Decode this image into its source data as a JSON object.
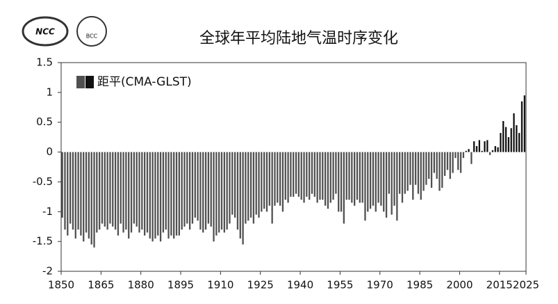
{
  "logos": [
    "NCC",
    "BCC"
  ],
  "chart_data": {
    "type": "bar",
    "title": "全球年平均陆地气温时序变化",
    "series": [
      {
        "name": "距平(CMA-GLST)",
        "color": "#505050",
        "positive_color": "#111111",
        "values": [
          -1.1,
          -1.3,
          -1.4,
          -1.2,
          -1.3,
          -1.45,
          -1.3,
          -1.4,
          -1.5,
          -1.35,
          -1.45,
          -1.55,
          -1.6,
          -1.35,
          -1.3,
          -1.2,
          -1.25,
          -1.3,
          -1.2,
          -1.25,
          -1.3,
          -1.4,
          -1.2,
          -1.35,
          -1.3,
          -1.45,
          -1.35,
          -1.2,
          -1.25,
          -1.35,
          -1.3,
          -1.4,
          -1.35,
          -1.45,
          -1.5,
          -1.45,
          -1.4,
          -1.5,
          -1.35,
          -1.3,
          -1.45,
          -1.4,
          -1.45,
          -1.4,
          -1.4,
          -1.3,
          -1.25,
          -1.2,
          -1.3,
          -1.2,
          -1.1,
          -1.15,
          -1.3,
          -1.35,
          -1.3,
          -1.2,
          -1.25,
          -1.5,
          -1.4,
          -1.35,
          -1.3,
          -1.35,
          -1.3,
          -1.2,
          -1.05,
          -1.1,
          -1.3,
          -1.45,
          -1.55,
          -1.2,
          -1.15,
          -1.1,
          -1.2,
          -1.05,
          -1.1,
          -1.0,
          -0.95,
          -1.0,
          -0.9,
          -1.2,
          -0.9,
          -0.85,
          -0.9,
          -1.0,
          -0.8,
          -0.85,
          -0.75,
          -0.75,
          -0.7,
          -0.75,
          -0.8,
          -0.85,
          -0.75,
          -0.8,
          -0.7,
          -0.75,
          -0.85,
          -0.8,
          -0.8,
          -0.9,
          -0.95,
          -0.85,
          -0.8,
          -0.7,
          -1.0,
          -1.0,
          -1.2,
          -0.8,
          -0.8,
          -0.85,
          -0.9,
          -0.8,
          -0.85,
          -0.85,
          -1.15,
          -1.0,
          -0.95,
          -0.9,
          -1.0,
          -0.85,
          -0.9,
          -1.0,
          -1.1,
          -0.7,
          -1.05,
          -0.9,
          -1.15,
          -0.7,
          -0.85,
          -0.7,
          -0.65,
          -0.55,
          -0.8,
          -0.55,
          -0.7,
          -0.8,
          -0.65,
          -0.55,
          -0.45,
          -0.6,
          -0.35,
          -0.45,
          -0.65,
          -0.6,
          -0.4,
          -0.3,
          -0.45,
          -0.35,
          -0.1,
          -0.3,
          -0.35,
          -0.1,
          0.02,
          0.05,
          -0.2,
          0.18,
          0.1,
          0.2,
          0.02,
          0.18,
          0.2,
          -0.05,
          0.03,
          0.1,
          0.08,
          0.32,
          0.52,
          0.42,
          0.25,
          0.4,
          0.65,
          0.45,
          0.32,
          0.85,
          0.95
        ]
      }
    ],
    "x": [
      1850,
      1851,
      1852,
      1853,
      1854,
      1855,
      1856,
      1857,
      1858,
      1859,
      1860,
      1861,
      1862,
      1863,
      1864,
      1865,
      1866,
      1867,
      1868,
      1869,
      1870,
      1871,
      1872,
      1873,
      1874,
      1875,
      1876,
      1877,
      1878,
      1879,
      1880,
      1881,
      1882,
      1883,
      1884,
      1885,
      1886,
      1887,
      1888,
      1889,
      1890,
      1891,
      1892,
      1893,
      1894,
      1895,
      1896,
      1897,
      1898,
      1899,
      1900,
      1901,
      1902,
      1903,
      1904,
      1905,
      1906,
      1907,
      1908,
      1909,
      1910,
      1911,
      1912,
      1913,
      1914,
      1915,
      1916,
      1917,
      1918,
      1919,
      1920,
      1921,
      1922,
      1923,
      1924,
      1925,
      1926,
      1927,
      1928,
      1929,
      1930,
      1931,
      1932,
      1933,
      1934,
      1935,
      1936,
      1937,
      1938,
      1939,
      1940,
      1941,
      1942,
      1943,
      1944,
      1945,
      1946,
      1947,
      1948,
      1949,
      1950,
      1951,
      1952,
      1953,
      1954,
      1955,
      1956,
      1957,
      1958,
      1959,
      1960,
      1961,
      1962,
      1963,
      1964,
      1965,
      1966,
      1967,
      1968,
      1969,
      1970,
      1971,
      1972,
      1973,
      1974,
      1975,
      1976,
      1977,
      1978,
      1979,
      1980,
      1981,
      1982,
      1983,
      1984,
      1985,
      1986,
      1987,
      1988,
      1989,
      1990,
      1991,
      1992,
      1993,
      1994,
      1995,
      1996,
      1997,
      1998,
      1999,
      2000,
      2001,
      2002,
      2003,
      2004,
      2005,
      2006,
      2007,
      2008,
      2009,
      2010,
      2011,
      2012,
      2013,
      2014,
      2015,
      2016,
      2017,
      2018,
      2019,
      2020,
      2021,
      2022,
      2023,
      2024
    ],
    "xlim": [
      1850,
      2025
    ],
    "xticks": [
      1850,
      1865,
      1880,
      1895,
      1910,
      1925,
      1940,
      1955,
      1970,
      1985,
      2000,
      2015,
      2025
    ],
    "ylim": [
      -2,
      1.5
    ],
    "yticks": [
      1.5,
      1,
      0.5,
      0,
      -0.5,
      -1,
      -1.5,
      -2
    ],
    "legend": "upper left"
  }
}
